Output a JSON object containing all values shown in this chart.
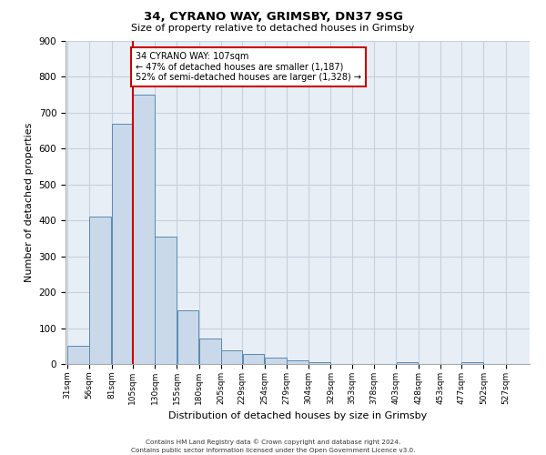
{
  "title": "34, CYRANO WAY, GRIMSBY, DN37 9SG",
  "subtitle": "Size of property relative to detached houses in Grimsby",
  "xlabel": "Distribution of detached houses by size in Grimsby",
  "ylabel": "Number of detached properties",
  "bin_labels": [
    "31sqm",
    "56sqm",
    "81sqm",
    "105sqm",
    "130sqm",
    "155sqm",
    "180sqm",
    "205sqm",
    "229sqm",
    "254sqm",
    "279sqm",
    "304sqm",
    "329sqm",
    "353sqm",
    "378sqm",
    "403sqm",
    "428sqm",
    "453sqm",
    "477sqm",
    "502sqm",
    "527sqm"
  ],
  "bar_values": [
    50,
    410,
    670,
    750,
    355,
    150,
    70,
    37,
    27,
    18,
    10,
    5,
    0,
    0,
    0,
    5,
    0,
    0,
    5,
    0,
    0
  ],
  "bin_starts": [
    31,
    56,
    81,
    105,
    130,
    155,
    180,
    205,
    229,
    254,
    279,
    304,
    329,
    353,
    378,
    403,
    428,
    453,
    477,
    502,
    527
  ],
  "bar_color": "#c9d9ea",
  "bar_edgecolor": "#5a8ab0",
  "property_line_x": 105,
  "property_line_label": "34 CYRANO WAY: 107sqm",
  "annotation_line1": "← 47% of detached houses are smaller (1,187)",
  "annotation_line2": "52% of semi-detached houses are larger (1,328) →",
  "annotation_box_color": "#ffffff",
  "annotation_box_edgecolor": "#cc0000",
  "vline_color": "#cc0000",
  "ylim": [
    0,
    900
  ],
  "yticks": [
    0,
    100,
    200,
    300,
    400,
    500,
    600,
    700,
    800,
    900
  ],
  "grid_color": "#c5d0e0",
  "bg_color": "#e8eef5",
  "footer1": "Contains HM Land Registry data © Crown copyright and database right 2024.",
  "footer2": "Contains public sector information licensed under the Open Government Licence v3.0."
}
